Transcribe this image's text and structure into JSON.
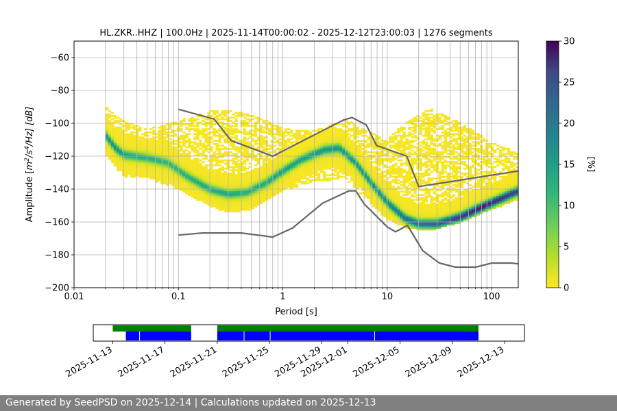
{
  "chart_data": [
    {
      "type": "heatmap",
      "title": "HL.ZKR..HHZ | 100.0Hz | 2025-11-14T00:00:02 - 2025-12-12T23:00:03 | 1276 segments",
      "xlabel": "Period [s]",
      "ylabel_parts": [
        "Amplitude [",
        "m",
        "2",
        "/s",
        "4",
        "/Hz] [dB]"
      ],
      "x_scale": "log",
      "xlim": [
        0.01,
        180
      ],
      "ylim": [
        -200,
        -50
      ],
      "x_ticks": [
        {
          "v": 0.01,
          "label": "0.01"
        },
        {
          "v": 0.1,
          "label": "0.1"
        },
        {
          "v": 1,
          "label": "1"
        },
        {
          "v": 10,
          "label": "10"
        },
        {
          "v": 100,
          "label": "100"
        }
      ],
      "y_ticks": [
        {
          "v": -60,
          "label": "−60"
        },
        {
          "v": -80,
          "label": "−80"
        },
        {
          "v": -100,
          "label": "−100"
        },
        {
          "v": -120,
          "label": "−120"
        },
        {
          "v": -140,
          "label": "−140"
        },
        {
          "v": -160,
          "label": "−160"
        },
        {
          "v": -180,
          "label": "−180"
        },
        {
          "v": -200,
          "label": "−200"
        }
      ],
      "grid": true,
      "colormap": "viridis_r",
      "colorbar": {
        "label": "[%]",
        "range": [
          0,
          30
        ],
        "ticks": [
          {
            "v": 0,
            "label": "0"
          },
          {
            "v": 5,
            "label": "5"
          },
          {
            "v": 10,
            "label": "10"
          },
          {
            "v": 15,
            "label": "15"
          },
          {
            "v": 20,
            "label": "20"
          },
          {
            "v": 25,
            "label": "25"
          },
          {
            "v": 30,
            "label": "30"
          }
        ]
      },
      "psd_mode": [
        {
          "period": 0.02,
          "db": -107,
          "pct": 14
        },
        {
          "period": 0.025,
          "db": -115,
          "pct": 14
        },
        {
          "period": 0.03,
          "db": -119,
          "pct": 12
        },
        {
          "period": 0.05,
          "db": -121,
          "pct": 10
        },
        {
          "period": 0.08,
          "db": -124,
          "pct": 9
        },
        {
          "period": 0.12,
          "db": -132,
          "pct": 10
        },
        {
          "period": 0.2,
          "db": -140,
          "pct": 11
        },
        {
          "period": 0.3,
          "db": -143,
          "pct": 11
        },
        {
          "period": 0.45,
          "db": -142,
          "pct": 10
        },
        {
          "period": 0.7,
          "db": -136,
          "pct": 11
        },
        {
          "period": 1.0,
          "db": -129,
          "pct": 12
        },
        {
          "period": 1.5,
          "db": -122,
          "pct": 12
        },
        {
          "period": 2.5,
          "db": -116,
          "pct": 13
        },
        {
          "period": 3.5,
          "db": -115,
          "pct": 13
        },
        {
          "period": 5,
          "db": -124,
          "pct": 13
        },
        {
          "period": 7,
          "db": -136,
          "pct": 14
        },
        {
          "period": 10,
          "db": -148,
          "pct": 15
        },
        {
          "period": 15,
          "db": -158,
          "pct": 18
        },
        {
          "period": 20,
          "db": -161,
          "pct": 18
        },
        {
          "period": 30,
          "db": -161,
          "pct": 20
        },
        {
          "period": 50,
          "db": -157,
          "pct": 24
        },
        {
          "period": 80,
          "db": -151,
          "pct": 27
        },
        {
          "period": 120,
          "db": -146,
          "pct": 25
        },
        {
          "period": 180,
          "db": -141,
          "pct": 22
        }
      ],
      "psd_spread": [
        {
          "period": 0.02,
          "low": -118,
          "high": -90
        },
        {
          "period": 0.03,
          "low": -133,
          "high": -99
        },
        {
          "period": 0.05,
          "low": -133,
          "high": -104
        },
        {
          "period": 0.1,
          "low": -140,
          "high": -99
        },
        {
          "period": 0.2,
          "low": -150,
          "high": -93
        },
        {
          "period": 0.3,
          "low": -154,
          "high": -92
        },
        {
          "period": 0.5,
          "low": -152,
          "high": -95
        },
        {
          "period": 1.0,
          "low": -141,
          "high": -103
        },
        {
          "period": 2.0,
          "low": -135,
          "high": -105
        },
        {
          "period": 4.0,
          "low": -133,
          "high": -98
        },
        {
          "period": 6.0,
          "low": -145,
          "high": -104
        },
        {
          "period": 10,
          "low": -158,
          "high": -110
        },
        {
          "period": 15,
          "low": -163,
          "high": -100
        },
        {
          "period": 25,
          "low": -165,
          "high": -91
        },
        {
          "period": 50,
          "low": -160,
          "high": -100
        },
        {
          "period": 100,
          "low": -152,
          "high": -112
        },
        {
          "period": 180,
          "low": -146,
          "high": -118
        }
      ],
      "nhnm": [
        {
          "period": 0.1,
          "db": -91.5
        },
        {
          "period": 0.22,
          "db": -97.4
        },
        {
          "period": 0.32,
          "db": -110.5
        },
        {
          "period": 0.8,
          "db": -120.0
        },
        {
          "period": 3.8,
          "db": -98.0
        },
        {
          "period": 4.6,
          "db": -96.5
        },
        {
          "period": 6.3,
          "db": -101.0
        },
        {
          "period": 7.9,
          "db": -113.5
        },
        {
          "period": 15.4,
          "db": -120.0
        },
        {
          "period": 20.0,
          "db": -138.5
        },
        {
          "period": 180,
          "db": -129.0
        }
      ],
      "nlnm": [
        {
          "period": 0.1,
          "db": -168.0
        },
        {
          "period": 0.17,
          "db": -166.7
        },
        {
          "period": 0.4,
          "db": -166.7
        },
        {
          "period": 0.8,
          "db": -169.2
        },
        {
          "period": 1.24,
          "db": -163.7
        },
        {
          "period": 2.4,
          "db": -148.6
        },
        {
          "period": 4.3,
          "db": -141.1
        },
        {
          "period": 5.0,
          "db": -141.1
        },
        {
          "period": 6.0,
          "db": -149.0
        },
        {
          "period": 10.0,
          "db": -163.0
        },
        {
          "period": 12.0,
          "db": -166.0
        },
        {
          "period": 15.6,
          "db": -162.1
        },
        {
          "period": 21.9,
          "db": -177.5
        },
        {
          "period": 31.6,
          "db": -185.0
        },
        {
          "period": 45.0,
          "db": -187.5
        },
        {
          "period": 70.0,
          "db": -187.5
        },
        {
          "period": 101.0,
          "db": -185.0
        },
        {
          "period": 154.0,
          "db": -185.0
        },
        {
          "period": 180,
          "db": -185.5
        }
      ]
    },
    {
      "type": "timeline",
      "x_ticks": [
        "2025-11-13",
        "2025-11-17",
        "2025-11-21",
        "2025-11-25",
        "2025-11-29",
        "2025-12-01",
        "2025-12-05",
        "2025-12-09",
        "2025-12-13"
      ],
      "x_range": [
        "2025-11-13",
        "2025-12-13"
      ],
      "data_availability": {
        "color": "#008000",
        "periods": [
          [
            "2025-11-13",
            "2025-11-19"
          ],
          [
            "2025-11-21",
            "2025-12-11"
          ]
        ]
      },
      "psd_coverage": {
        "color": "#0000ff",
        "periods": [
          [
            "2025-11-14",
            "2025-11-19"
          ],
          [
            "2025-11-21",
            "2025-12-11"
          ]
        ],
        "gaps": [
          "2025-11-15",
          "2025-11-23",
          "2025-11-25",
          "2025-12-03"
        ]
      }
    }
  ],
  "footer": {
    "text": "Generated by SeedPSD on 2025-12-14 | Calculations updated on 2025-12-13"
  }
}
